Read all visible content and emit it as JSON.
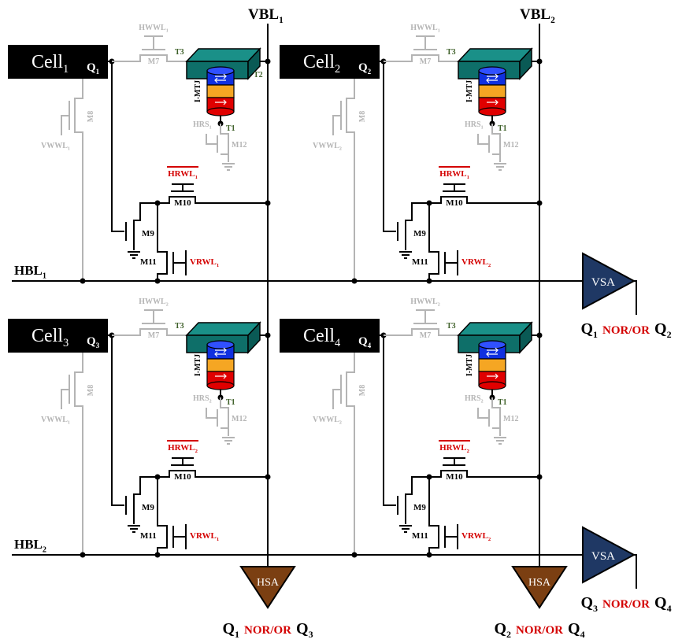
{
  "vbl": [
    {
      "text": "VBL",
      "sub": "1"
    },
    {
      "text": "VBL",
      "sub": "2"
    }
  ],
  "hbl": [
    {
      "text": "HBL",
      "sub": "1"
    },
    {
      "text": "HBL",
      "sub": "2"
    }
  ],
  "cells": [
    {
      "name": {
        "text": "Cell",
        "sub": "1"
      },
      "q": {
        "text": "Q",
        "sub": "1"
      },
      "hwwl": {
        "text": "HWWL",
        "sub": "1"
      },
      "m7": "M7",
      "t3": "T3",
      "t2": "T2",
      "t1": "T1",
      "mtj": "I-MTJ",
      "hrs": {
        "text": "HRS",
        "sub": "1"
      },
      "m12": "M12",
      "m8": "M8",
      "vwwl": {
        "text": "VWWL",
        "sub": "1"
      },
      "hrwl": {
        "text": "HRWL",
        "sub": "1"
      },
      "m10": "M10",
      "m9": "M9",
      "m11": "M11",
      "vrwl": {
        "text": "VRWL",
        "sub": "1"
      }
    },
    {
      "name": {
        "text": "Cell",
        "sub": "2"
      },
      "q": {
        "text": "Q",
        "sub": "2"
      },
      "hwwl": {
        "text": "HWWL",
        "sub": "1"
      },
      "m7": "M7",
      "t3": "T3",
      "t1": "T1",
      "mtj": "I-MTJ",
      "hrs": {
        "text": "HRS",
        "sub": "1"
      },
      "m12": "M12",
      "m8": "M8",
      "vwwl": {
        "text": "VWWL",
        "sub": "2"
      },
      "hrwl": {
        "text": "HRWL",
        "sub": "1"
      },
      "m10": "M10",
      "m9": "M9",
      "m11": "M11",
      "vrwl": {
        "text": "VRWL",
        "sub": "2"
      }
    },
    {
      "name": {
        "text": "Cell",
        "sub": "3"
      },
      "q": {
        "text": "Q",
        "sub": "3"
      },
      "hwwl": {
        "text": "HWWL",
        "sub": "2"
      },
      "m7": "M7",
      "t3": "T3",
      "t1": "T1",
      "mtj": "I-MTJ",
      "hrs": {
        "text": "HRS",
        "sub": "2"
      },
      "m12": "M12",
      "m8": "M8",
      "vwwl": {
        "text": "VWWL",
        "sub": "1"
      },
      "hrwl": {
        "text": "HRWL",
        "sub": "2"
      },
      "m10": "M10",
      "m9": "M9",
      "m11": "M11",
      "vrwl": {
        "text": "VRWL",
        "sub": "1"
      }
    },
    {
      "name": {
        "text": "Cell",
        "sub": "4"
      },
      "q": {
        "text": "Q",
        "sub": "4"
      },
      "hwwl": {
        "text": "HWWL",
        "sub": "2"
      },
      "m7": "M7",
      "t3": "T3",
      "t1": "T1",
      "mtj": "I-MTJ",
      "hrs": {
        "text": "HRS",
        "sub": "2"
      },
      "m12": "M12",
      "m8": "M8",
      "vwwl": {
        "text": "VWWL",
        "sub": "2"
      },
      "hrwl": {
        "text": "HRWL",
        "sub": "2"
      },
      "m10": "M10",
      "m9": "M9",
      "m11": "M11",
      "vrwl": {
        "text": "VRWL",
        "sub": "2"
      }
    }
  ],
  "vsa": [
    {
      "label": "VSA",
      "left": {
        "text": "Q",
        "sub": "1"
      },
      "op": "NOR/OR",
      "right": {
        "text": "Q",
        "sub": "2"
      }
    },
    {
      "label": "VSA",
      "left": {
        "text": "Q",
        "sub": "3"
      },
      "op": "NOR/OR",
      "right": {
        "text": "Q",
        "sub": "4"
      }
    }
  ],
  "hsa": [
    {
      "label": "HSA",
      "left": {
        "text": "Q",
        "sub": "1"
      },
      "op": "NOR/OR",
      "right": {
        "text": "Q",
        "sub": "3"
      }
    },
    {
      "label": "HSA",
      "left": {
        "text": "Q",
        "sub": "2"
      },
      "op": "NOR/OR",
      "right": {
        "text": "Q",
        "sub": "4"
      }
    }
  ]
}
